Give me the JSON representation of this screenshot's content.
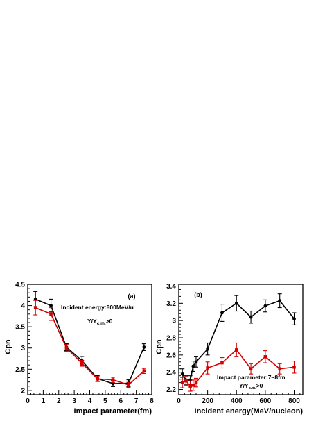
{
  "chart_data": [
    {
      "type": "line",
      "panel_label": "(a)",
      "xlabel": "Impact parameter(fm)",
      "ylabel": "Cpn",
      "xlim": [
        0,
        8
      ],
      "ylim": [
        1.9,
        4.5
      ],
      "xticks": [
        0,
        1,
        2,
        3,
        4,
        5,
        6,
        7,
        8
      ],
      "yticks": [
        2,
        2.5,
        3,
        3.5,
        4,
        4.5
      ],
      "yticklabels": [
        "2",
        "2.5",
        "3",
        "3.5",
        "4",
        "4.5"
      ],
      "annotations": [
        "Incident energy:800MeV/u",
        "Y/Y",
        "c.m.",
        ">0"
      ],
      "series": [
        {
          "color": "#000000",
          "marker": "circle",
          "x": [
            0.5,
            1.5,
            2.5,
            3.5,
            4.5,
            5.5,
            6.5,
            7.5
          ],
          "y": [
            4.15,
            4.0,
            3.02,
            2.7,
            2.28,
            2.16,
            2.17,
            3.02
          ],
          "err": [
            0.18,
            0.15,
            0.08,
            0.1,
            0.07,
            0.07,
            0.08,
            0.08
          ]
        },
        {
          "color": "#d40000",
          "marker": "square",
          "x": [
            0.5,
            1.5,
            2.5,
            3.5,
            4.5,
            5.5,
            6.5,
            7.5
          ],
          "y": [
            3.95,
            3.8,
            3.0,
            2.64,
            2.27,
            2.25,
            2.13,
            2.46
          ],
          "err": [
            0.17,
            0.15,
            0.08,
            0.07,
            0.06,
            0.06,
            0.06,
            0.06
          ]
        }
      ]
    },
    {
      "type": "line",
      "panel_label": "(b)",
      "xlabel": "Incident energy(MeV/nucleon)",
      "ylabel": "Cpn",
      "xlim": [
        0,
        860
      ],
      "ylim": [
        2.14,
        3.42
      ],
      "xticks": [
        0,
        200,
        400,
        600,
        800
      ],
      "yticks": [
        2.2,
        2.4,
        2.6,
        2.8,
        3.0,
        3.2,
        3.4
      ],
      "yticklabels": [
        "2.2",
        "2.4",
        "2.6",
        "2.8",
        "3",
        "3.2",
        "3.4"
      ],
      "annotations": [
        "Impact parameter:7~8fm",
        "Y/Y",
        "c.m.",
        ">0"
      ],
      "series": [
        {
          "color": "#000000",
          "marker": "circle",
          "x": [
            25,
            50,
            80,
            100,
            120,
            200,
            300,
            400,
            500,
            600,
            700,
            800
          ],
          "y": [
            2.38,
            2.31,
            2.31,
            2.47,
            2.52,
            2.67,
            3.09,
            3.2,
            3.04,
            3.17,
            3.23,
            3.02
          ],
          "err": [
            0.06,
            0.05,
            0.05,
            0.06,
            0.06,
            0.07,
            0.1,
            0.09,
            0.07,
            0.07,
            0.08,
            0.07
          ]
        },
        {
          "color": "#d40000",
          "marker": "square",
          "x": [
            25,
            50,
            80,
            100,
            120,
            200,
            300,
            400,
            500,
            600,
            700,
            800
          ],
          "y": [
            2.28,
            2.3,
            2.24,
            2.25,
            2.28,
            2.45,
            2.51,
            2.66,
            2.44,
            2.58,
            2.44,
            2.46
          ],
          "err": [
            0.06,
            0.05,
            0.06,
            0.06,
            0.05,
            0.07,
            0.06,
            0.08,
            0.06,
            0.07,
            0.06,
            0.07
          ]
        }
      ]
    }
  ]
}
